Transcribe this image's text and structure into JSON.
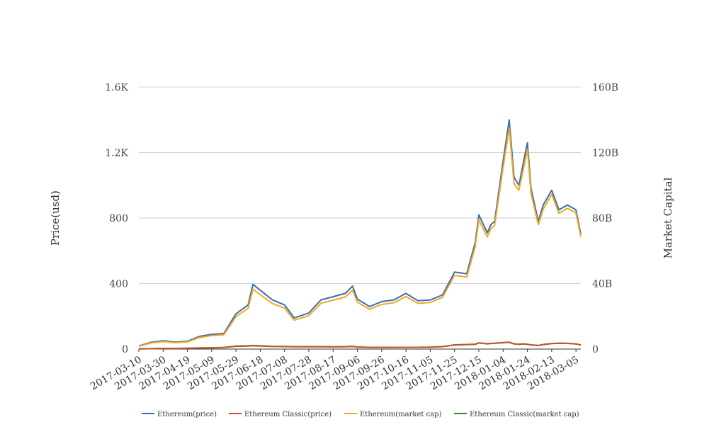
{
  "chart_data": {
    "type": "line",
    "title": "",
    "xlabel": "",
    "ylabel": "Price(usd)",
    "y2label": "Market Capital",
    "ylim": [
      0,
      1600
    ],
    "y2lim": [
      0,
      160000000000
    ],
    "x_tick_labels": [
      "2017-03-10",
      "2017-03-30",
      "2017-04-19",
      "2017-05-09",
      "2017-05-29",
      "2017-06-18",
      "2017-07-08",
      "2017-07-28",
      "2017-08-17",
      "2017-09-06",
      "2017-09-26",
      "2017-10-16",
      "2017-11-05",
      "2017-11-25",
      "2017-12-15",
      "2018-01-04",
      "2018-01-24",
      "2018-02-13",
      "2018-03-05"
    ],
    "y_tick_labels": [
      "0",
      "400",
      "800",
      "1.2K",
      "1.6K"
    ],
    "y2_tick_labels": [
      "0",
      "40B",
      "80B",
      "120B",
      "160B"
    ],
    "grid": true,
    "legend_position": "bottom",
    "x_start": "2017-03-10",
    "x_end": "2018-03-09",
    "dates": [
      "2017-03-10",
      "2017-03-20",
      "2017-03-30",
      "2017-04-09",
      "2017-04-19",
      "2017-04-29",
      "2017-05-09",
      "2017-05-19",
      "2017-05-29",
      "2017-06-08",
      "2017-06-12",
      "2017-06-18",
      "2017-06-28",
      "2017-07-08",
      "2017-07-16",
      "2017-07-28",
      "2017-08-07",
      "2017-08-17",
      "2017-08-27",
      "2017-09-02",
      "2017-09-06",
      "2017-09-16",
      "2017-09-26",
      "2017-10-06",
      "2017-10-16",
      "2017-10-26",
      "2017-11-05",
      "2017-11-15",
      "2017-11-25",
      "2017-12-05",
      "2017-12-12",
      "2017-12-15",
      "2017-12-22",
      "2017-12-25",
      "2017-12-28",
      "2018-01-04",
      "2018-01-09",
      "2018-01-13",
      "2018-01-17",
      "2018-01-21",
      "2018-01-24",
      "2018-01-27",
      "2018-02-02",
      "2018-02-06",
      "2018-02-13",
      "2018-02-19",
      "2018-02-26",
      "2018-03-05",
      "2018-03-09"
    ],
    "series": [
      {
        "name": "Ethereum(price)",
        "color": "#3c6db0",
        "axis": "left",
        "values": [
          19,
          41,
          51,
          43,
          48,
          78,
          90,
          95,
          215,
          270,
          395,
          360,
          300,
          270,
          190,
          220,
          300,
          320,
          340,
          385,
          305,
          260,
          290,
          300,
          340,
          295,
          300,
          330,
          470,
          460,
          650,
          820,
          710,
          760,
          780,
          1150,
          1400,
          1050,
          1000,
          1150,
          1260,
          980,
          780,
          880,
          970,
          850,
          880,
          850,
          700
        ]
      },
      {
        "name": "Ethereum Classic(price)",
        "color": "#c9512a",
        "axis": "left",
        "values": [
          1.5,
          2.5,
          4,
          4,
          5,
          7,
          8,
          10,
          18,
          20,
          22,
          20,
          17,
          16,
          15,
          15,
          15,
          14,
          15,
          17,
          13,
          11,
          11,
          11,
          11,
          11,
          12,
          15,
          26,
          28,
          30,
          38,
          33,
          35,
          36,
          40,
          42,
          32,
          30,
          32,
          29,
          26,
          22,
          28,
          34,
          36,
          35,
          32,
          25
        ]
      },
      {
        "name": "Ethereum(market cap)",
        "color": "#f0a920",
        "axis": "right",
        "values": [
          1700000000,
          3700000000,
          4600000000,
          3900000000,
          4400000000,
          7100000000,
          8200000000,
          8700000000,
          19800000000,
          24900000000,
          36500000000,
          33300000000,
          27800000000,
          25000000000,
          17600000000,
          20400000000,
          28000000000,
          29900000000,
          31800000000,
          36000000000,
          28600000000,
          24400000000,
          27300000000,
          28300000000,
          32100000000,
          27900000000,
          28500000000,
          31500000000,
          45000000000,
          44000000000,
          62500000000,
          79000000000,
          68500000000,
          73500000000,
          75500000000,
          111000000000,
          135000000000,
          101000000000,
          97000000000,
          111000000000,
          122000000000,
          95000000000,
          76000000000,
          85500000000,
          94500000000,
          83000000000,
          86000000000,
          83000000000,
          68500000000
        ]
      },
      {
        "name": "Ethereum Classic(market cap)",
        "color": "#2e8b2e",
        "axis": "right",
        "values": [
          140000000,
          230000000,
          370000000,
          370000000,
          470000000,
          650000000,
          750000000,
          930000000,
          1700000000,
          1870000000,
          2060000000,
          1870000000,
          1600000000,
          1500000000,
          1400000000,
          1400000000,
          1410000000,
          1320000000,
          1420000000,
          1610000000,
          1230000000,
          1050000000,
          1050000000,
          1050000000,
          1060000000,
          1060000000,
          1160000000,
          1450000000,
          2520000000,
          2710000000,
          2910000000,
          3700000000,
          3210000000,
          3400000000,
          3500000000,
          3900000000,
          4100000000,
          3120000000,
          2930000000,
          3130000000,
          2840000000,
          2550000000,
          2160000000,
          2760000000,
          3350000000,
          3550000000,
          3450000000,
          3160000000,
          2470000000
        ]
      }
    ]
  }
}
